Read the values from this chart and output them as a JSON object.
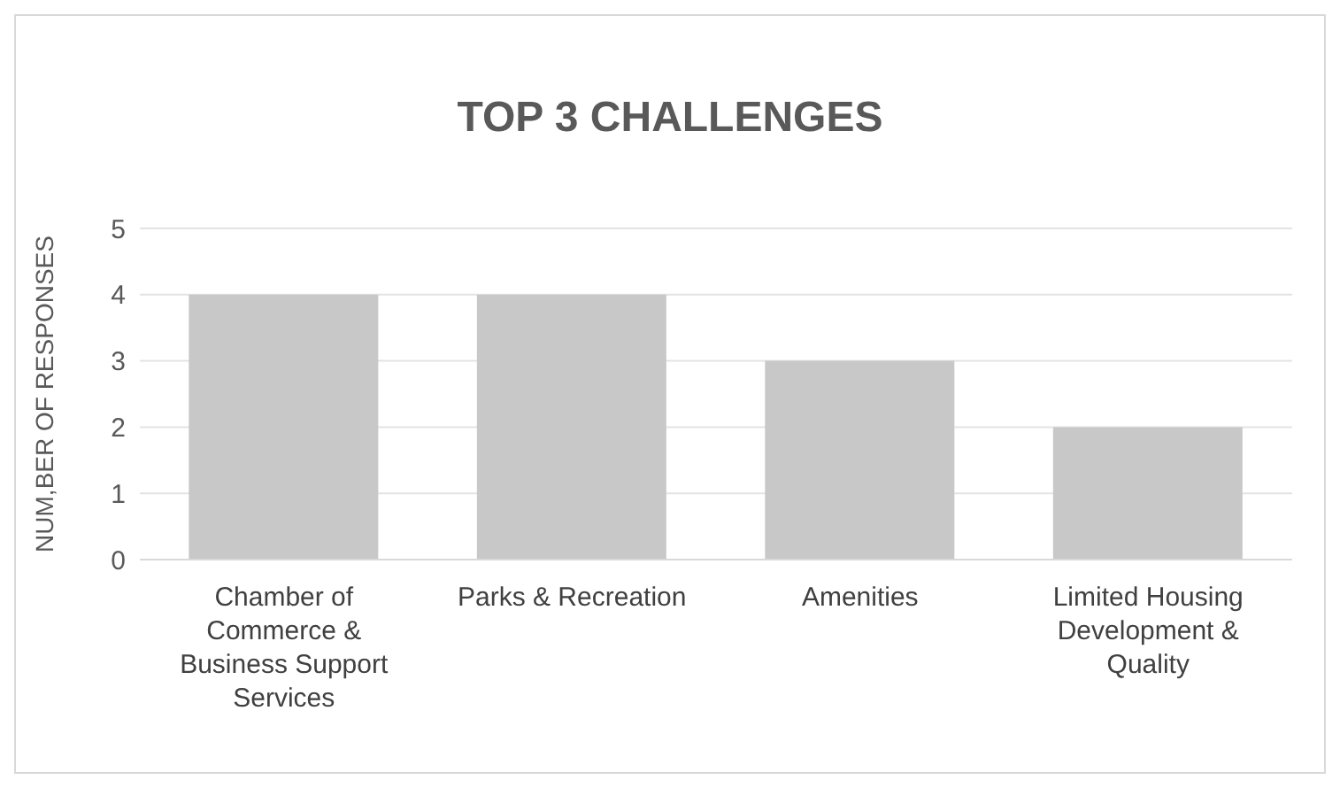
{
  "chart_data": {
    "type": "bar",
    "title": "TOP 3 CHALLENGES",
    "ylabel": "NUM,BER OF RESPONSES",
    "categories": [
      "Chamber of Commerce & Business Support Services",
      "Parks & Recreation",
      "Amenities",
      "Limited Housing Development & Quality"
    ],
    "values": [
      4,
      4,
      3,
      2
    ],
    "color": "#c8c8c8",
    "ylim": [
      0,
      5
    ],
    "yticks": [
      0,
      1,
      2,
      3,
      4,
      5
    ],
    "grid": "y",
    "legend": false
  }
}
